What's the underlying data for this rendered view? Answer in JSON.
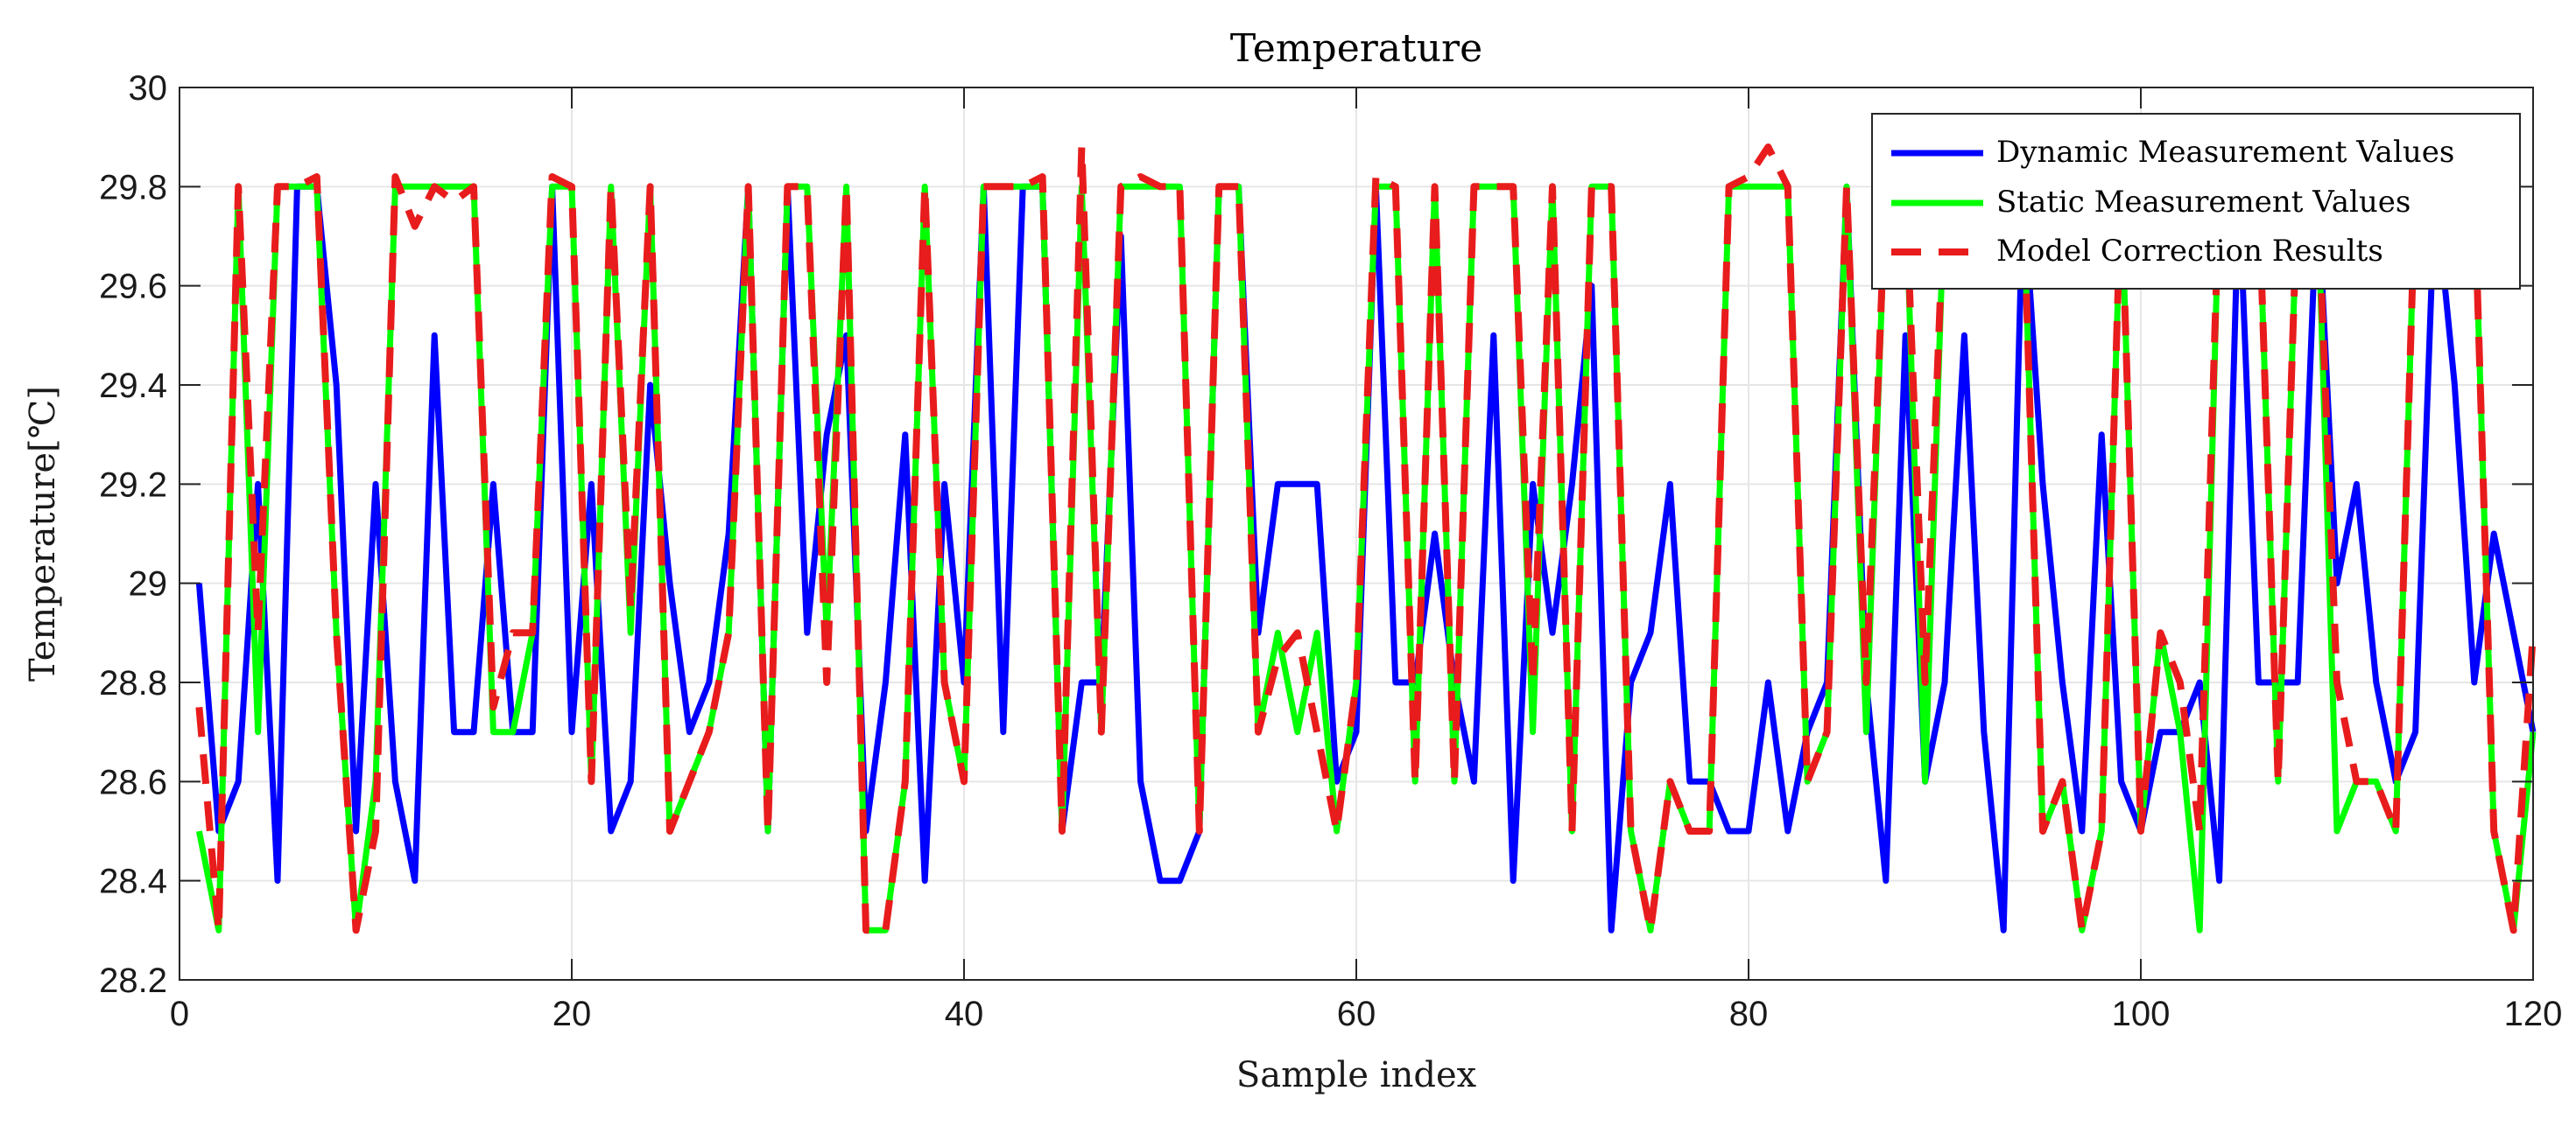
{
  "chart_data": {
    "type": "line",
    "title": "Temperature",
    "xlabel": "Sample index",
    "ylabel": "Temperature[℃]",
    "xlim": [
      0,
      120
    ],
    "ylim": [
      28.2,
      30
    ],
    "xticks": [
      0,
      20,
      40,
      60,
      80,
      100,
      120
    ],
    "xtick_labels": [
      "0",
      "20",
      "40",
      "60",
      "80",
      "100",
      "120"
    ],
    "yticks": [
      28.2,
      28.4,
      28.6,
      28.8,
      29.0,
      29.2,
      29.4,
      29.6,
      29.8,
      30.0
    ],
    "ytick_labels": [
      "28.2",
      "28.4",
      "28.6",
      "28.8",
      "29",
      "29.2",
      "29.4",
      "29.6",
      "29.8",
      "30"
    ],
    "grid": true,
    "legend_position": "top-right",
    "x": [
      1,
      2,
      3,
      4,
      5,
      6,
      7,
      8,
      9,
      10,
      11,
      12,
      13,
      14,
      15,
      16,
      17,
      18,
      19,
      20,
      21,
      22,
      23,
      24,
      25,
      26,
      27,
      28,
      29,
      30,
      31,
      32,
      33,
      34,
      35,
      36,
      37,
      38,
      39,
      40,
      41,
      42,
      43,
      44,
      45,
      46,
      47,
      48,
      49,
      50,
      51,
      52,
      53,
      54,
      55,
      56,
      57,
      58,
      59,
      60,
      61,
      62,
      63,
      64,
      65,
      66,
      67,
      68,
      69,
      70,
      71,
      72,
      73,
      74,
      75,
      76,
      77,
      78,
      79,
      80,
      81,
      82,
      83,
      84,
      85,
      86,
      87,
      88,
      89,
      90,
      91,
      92,
      93,
      94,
      95,
      96,
      97,
      98,
      99,
      100,
      101,
      102,
      103,
      104,
      105,
      106,
      107,
      108,
      109,
      110,
      111,
      112,
      113,
      114,
      115,
      116,
      117,
      118,
      119,
      120
    ],
    "series": [
      {
        "name": "Dynamic Measurement Values",
        "color": "#0000ff",
        "style": "solid",
        "values": [
          29.0,
          28.5,
          28.6,
          29.2,
          28.4,
          29.8,
          29.8,
          29.4,
          28.5,
          29.2,
          28.6,
          28.4,
          29.5,
          28.7,
          28.7,
          29.2,
          28.7,
          28.7,
          29.8,
          28.7,
          29.2,
          28.5,
          28.6,
          29.4,
          29.0,
          28.7,
          28.8,
          29.1,
          29.8,
          28.5,
          29.8,
          28.9,
          29.3,
          29.5,
          28.5,
          28.8,
          29.3,
          28.4,
          29.2,
          28.8,
          29.8,
          28.7,
          29.8,
          29.8,
          28.5,
          28.8,
          28.8,
          29.7,
          28.6,
          28.4,
          28.4,
          28.5,
          29.8,
          29.8,
          28.9,
          29.2,
          29.2,
          29.2,
          28.6,
          28.7,
          29.8,
          28.8,
          28.8,
          29.1,
          28.8,
          28.6,
          29.5,
          28.4,
          29.2,
          28.9,
          29.2,
          29.6,
          28.3,
          28.8,
          28.9,
          29.2,
          28.6,
          28.6,
          28.5,
          28.5,
          28.8,
          28.5,
          28.7,
          28.8,
          29.8,
          28.8,
          28.4,
          29.5,
          28.6,
          28.8,
          29.5,
          28.7,
          28.3,
          29.8,
          29.2,
          28.8,
          28.5,
          29.3,
          28.6,
          28.5,
          28.7,
          28.7,
          28.8,
          28.4,
          29.8,
          28.8,
          28.8,
          28.8,
          29.8,
          29.0,
          29.2,
          28.8,
          28.6,
          28.7,
          29.8,
          29.4,
          28.8,
          29.1,
          28.9,
          28.7
        ]
      },
      {
        "name": "Static Measurement Values",
        "color": "#00ff00",
        "style": "solid",
        "values": [
          28.5,
          28.3,
          29.8,
          28.7,
          29.8,
          29.8,
          29.8,
          28.9,
          28.3,
          28.6,
          29.8,
          29.8,
          29.8,
          29.8,
          29.8,
          28.7,
          28.7,
          28.9,
          29.8,
          29.8,
          28.6,
          29.8,
          28.9,
          29.8,
          28.5,
          28.6,
          28.7,
          28.9,
          29.8,
          28.5,
          29.8,
          29.8,
          28.9,
          29.8,
          28.3,
          28.3,
          28.6,
          29.8,
          28.8,
          28.6,
          29.8,
          29.8,
          29.8,
          29.8,
          28.5,
          29.8,
          28.7,
          29.8,
          29.8,
          29.8,
          29.8,
          28.5,
          29.8,
          29.8,
          28.7,
          28.9,
          28.7,
          28.9,
          28.5,
          28.8,
          29.8,
          29.8,
          28.6,
          29.8,
          28.6,
          29.8,
          29.8,
          29.8,
          28.7,
          29.8,
          28.5,
          29.8,
          29.8,
          28.5,
          28.3,
          28.6,
          28.5,
          28.5,
          29.8,
          29.8,
          29.8,
          29.8,
          28.6,
          28.7,
          29.8,
          28.7,
          29.8,
          29.8,
          28.6,
          29.8,
          29.8,
          29.8,
          29.8,
          29.8,
          28.5,
          28.6,
          28.3,
          28.5,
          29.8,
          28.5,
          28.9,
          28.7,
          28.3,
          29.8,
          29.8,
          29.8,
          28.6,
          29.8,
          29.8,
          28.5,
          28.6,
          28.6,
          28.5,
          29.8,
          29.8,
          29.8,
          29.8,
          28.5,
          28.3,
          28.7
        ]
      },
      {
        "name": "Model Correction Results",
        "color": "#e81c1c",
        "style": "dashed",
        "values": [
          28.75,
          28.3,
          29.8,
          28.9,
          29.8,
          29.8,
          29.82,
          28.9,
          28.3,
          28.5,
          29.82,
          29.72,
          29.8,
          29.77,
          29.8,
          28.75,
          28.9,
          28.9,
          29.82,
          29.8,
          28.6,
          29.8,
          28.95,
          29.8,
          28.5,
          28.6,
          28.7,
          28.9,
          29.8,
          28.5,
          29.8,
          29.8,
          28.8,
          29.8,
          28.3,
          28.3,
          28.6,
          29.8,
          28.8,
          28.6,
          29.8,
          29.8,
          29.8,
          29.82,
          28.5,
          29.88,
          28.7,
          29.8,
          29.82,
          29.8,
          29.8,
          28.5,
          29.8,
          29.8,
          28.7,
          28.85,
          28.9,
          28.7,
          28.5,
          28.8,
          29.82,
          29.8,
          28.6,
          29.8,
          28.6,
          29.8,
          29.8,
          29.8,
          28.8,
          29.8,
          28.5,
          29.8,
          29.8,
          28.5,
          28.3,
          28.6,
          28.5,
          28.5,
          29.8,
          29.82,
          29.88,
          29.8,
          28.6,
          28.7,
          29.8,
          28.8,
          29.8,
          29.8,
          28.8,
          29.8,
          29.8,
          29.8,
          29.8,
          29.8,
          28.5,
          28.6,
          28.3,
          28.5,
          29.8,
          28.5,
          28.9,
          28.8,
          28.5,
          29.8,
          29.8,
          29.8,
          28.6,
          29.8,
          29.8,
          28.8,
          28.6,
          28.6,
          28.5,
          29.8,
          29.8,
          29.8,
          29.8,
          28.5,
          28.3,
          28.9
        ]
      }
    ]
  }
}
